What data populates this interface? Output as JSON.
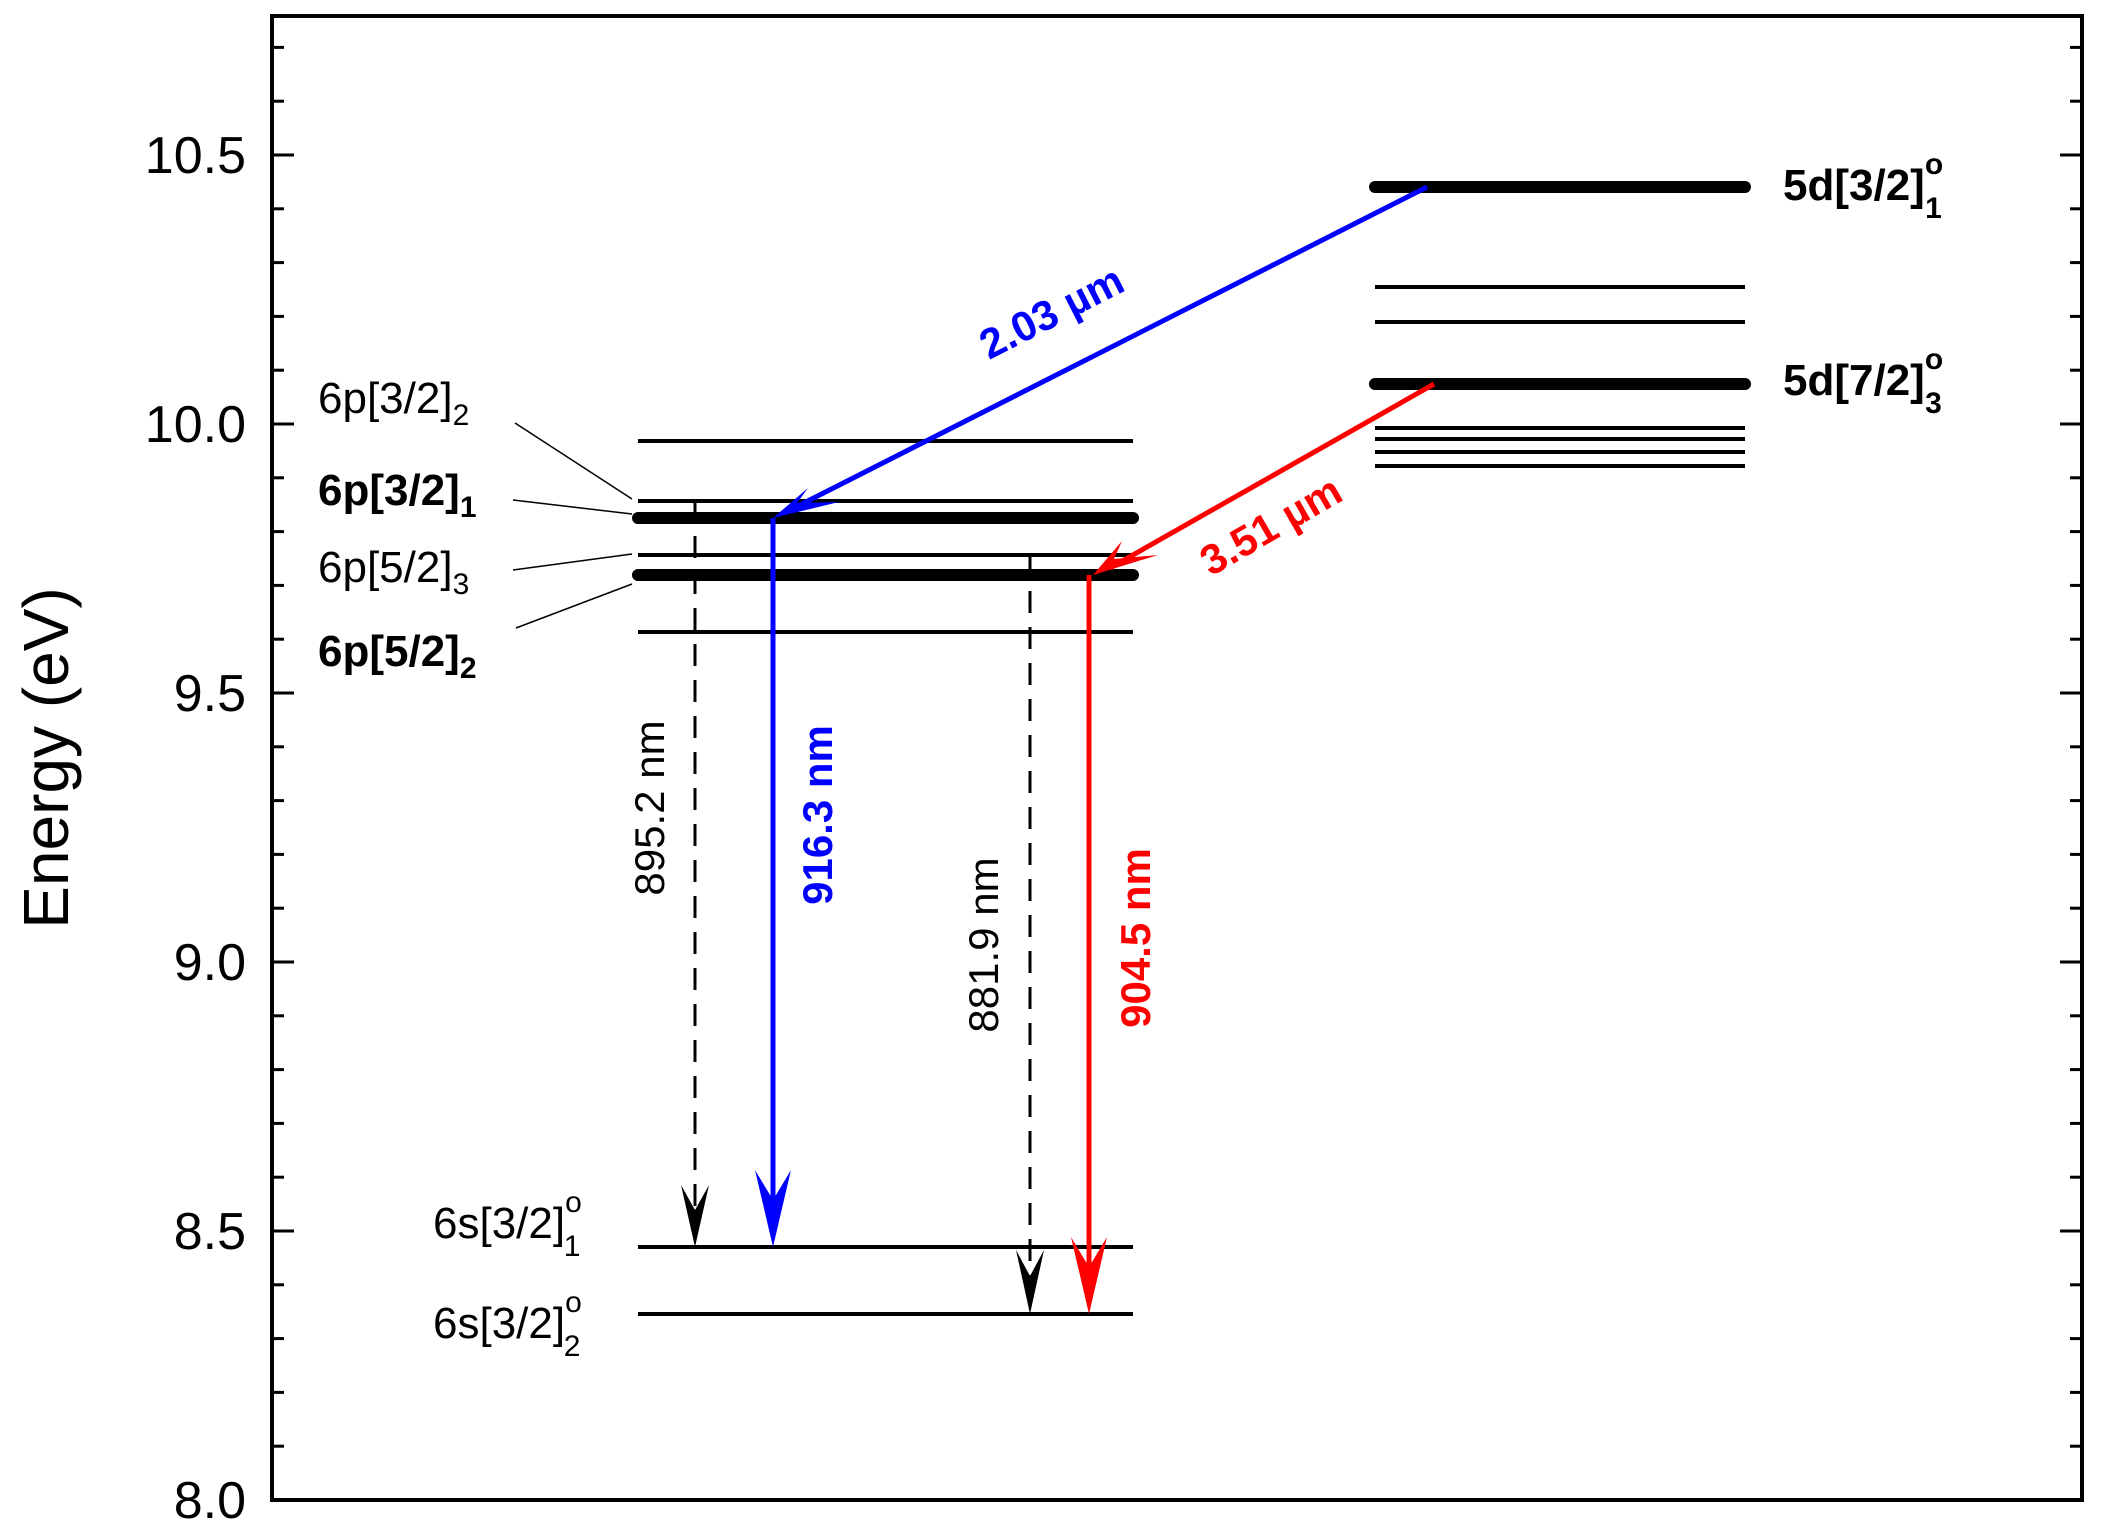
{
  "axis": {
    "ylabel": "Energy (eV)",
    "ylim": [
      8.0,
      10.75
    ],
    "major_ticks": [
      8.0,
      8.5,
      9.0,
      9.5,
      10.0,
      10.5
    ],
    "tick_labels": [
      "8.0",
      "8.5",
      "9.0",
      "9.5",
      "10.0",
      "10.5"
    ],
    "minor_step": 0.1
  },
  "labels": {
    "p32_2": {
      "main": "6p[3/2]",
      "sub": "2"
    },
    "p32_1": {
      "main": "6p[3/2]",
      "sub": "1"
    },
    "p52_3": {
      "main": "6p[5/2]",
      "sub": "3"
    },
    "p52_2": {
      "main": "6p[5/2]",
      "sub": "2"
    },
    "s32_1": {
      "main": "6s[3/2]",
      "sup": "o",
      "sub": "1"
    },
    "s32_2": {
      "main": "6s[3/2]",
      "sup": "o",
      "sub": "2"
    },
    "d32_1": {
      "main": "5d[3/2]",
      "sup": "o",
      "sub": "1"
    },
    "d72_3": {
      "main": "5d[7/2]",
      "sup": "o",
      "sub": "3"
    }
  },
  "levels": {
    "p_manifold": [
      9.96,
      9.85,
      9.82,
      9.75,
      9.72,
      9.61
    ],
    "p_manifold_bold": [
      9.82,
      9.72
    ],
    "s_manifold": [
      8.45,
      8.33
    ],
    "d_manifold": [
      10.43,
      10.25,
      10.19,
      10.07,
      9.98,
      9.96,
      9.94,
      9.91
    ],
    "d_manifold_bold": [
      10.43,
      10.07
    ]
  },
  "transitions": [
    {
      "label": "2.03 µm",
      "from": 10.43,
      "to": 9.82,
      "color": "#0000ff",
      "style": "solid"
    },
    {
      "label": "3.51 µm",
      "from": 10.07,
      "to": 9.72,
      "color": "#ff0000",
      "style": "solid"
    },
    {
      "label": "916.3 nm",
      "from": 9.82,
      "to": 8.45,
      "color": "#0000ff",
      "style": "solid"
    },
    {
      "label": "904.5 nm",
      "from": 9.72,
      "to": 8.33,
      "color": "#ff0000",
      "style": "solid"
    },
    {
      "label": "895.2 nm",
      "from": 9.85,
      "to": 8.45,
      "color": "#000000",
      "style": "dashed"
    },
    {
      "label": "881.9 nm",
      "from": 9.75,
      "to": 8.33,
      "color": "#000000",
      "style": "dashed"
    }
  ]
}
